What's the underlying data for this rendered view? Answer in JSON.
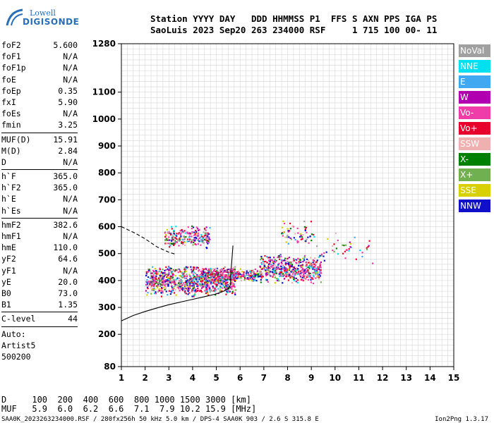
{
  "logo": {
    "line1": "Lowell",
    "line2": "DIGISONDE"
  },
  "header": {
    "line1": "Station YYYY DAY   DDD HHMMSS P1  FFS S AXN PPS IGA PS",
    "line2": "SaoLuis 2023 Sep20 263 234000 RSF     1 715 100 00- 11"
  },
  "params": [
    {
      "k": "foF2",
      "v": "5.600"
    },
    {
      "k": "foF1",
      "v": "N/A"
    },
    {
      "k": "foF1p",
      "v": "N/A"
    },
    {
      "k": "foE",
      "v": "N/A"
    },
    {
      "k": "foEp",
      "v": "0.35"
    },
    {
      "k": "fxI",
      "v": "5.90"
    },
    {
      "k": "foEs",
      "v": "N/A"
    },
    {
      "k": "fmin",
      "v": "3.25"
    },
    {
      "divider": true
    },
    {
      "k": "MUF(D)",
      "v": "15.91"
    },
    {
      "k": "M(D)",
      "v": "2.84"
    },
    {
      "k": "D",
      "v": "N/A"
    },
    {
      "divider": true
    },
    {
      "k": "h`F",
      "v": "365.0"
    },
    {
      "k": "h`F2",
      "v": "365.0"
    },
    {
      "k": "h`E",
      "v": "N/A"
    },
    {
      "k": "h`Es",
      "v": "N/A"
    },
    {
      "divider": true
    },
    {
      "k": "hmF2",
      "v": "382.6"
    },
    {
      "k": "hmF1",
      "v": "N/A"
    },
    {
      "k": "hmE",
      "v": "110.0"
    },
    {
      "k": "yF2",
      "v": "64.6"
    },
    {
      "k": "yF1",
      "v": "N/A"
    },
    {
      "k": "yE",
      "v": "20.0"
    },
    {
      "k": "B0",
      "v": "73.0"
    },
    {
      "k": "B1",
      "v": "1.35"
    },
    {
      "divider": true
    },
    {
      "k": "C-level",
      "v": "44"
    },
    {
      "divider": true
    }
  ],
  "auto": {
    "l1": "Auto:",
    "l2": "Artist5",
    "l3": "500200"
  },
  "legend": [
    {
      "label": "NoVal",
      "color": "#a0a0a0"
    },
    {
      "label": "NNE",
      "color": "#00e0f0"
    },
    {
      "label": "E",
      "color": "#40a8f0"
    },
    {
      "label": "W",
      "color": "#b000b0"
    },
    {
      "label": "Vo-",
      "color": "#f03ca8"
    },
    {
      "label": "Vo+",
      "color": "#e8002c"
    },
    {
      "label": "SSW",
      "color": "#f0b0b0"
    },
    {
      "label": "X-",
      "color": "#008000"
    },
    {
      "label": "X+",
      "color": "#70b050"
    },
    {
      "label": "SSE",
      "color": "#d8d000"
    },
    {
      "label": "NNW",
      "color": "#1010c8"
    }
  ],
  "bottom": {
    "line1": "D     100  200  400  600  800 1000 1500 3000 [km]",
    "line2": "MUF   5.9  6.0  6.2  6.6  7.1  7.9 10.2 15.9 [MHz]"
  },
  "footer": {
    "left": "SAA0K_2023263234000.RSF / 280fx256h 50 kHz 5.0 km / DPS-4 SAA0K 903 / 2.6 S 315.8 E",
    "right": "Ion2Png 1.3.17"
  },
  "chart_data": {
    "type": "scatter",
    "xlim": [
      1,
      15
    ],
    "ylim": [
      80,
      1280
    ],
    "xticks": [
      1,
      2,
      3,
      4,
      5,
      6,
      7,
      8,
      9,
      10,
      11,
      12,
      13,
      14,
      15
    ],
    "yticks": [
      80,
      200,
      300,
      400,
      500,
      600,
      700,
      800,
      900,
      1000,
      1100,
      1280
    ],
    "clusters": [
      {
        "x": [
          2.0,
          5.8
        ],
        "y": [
          340,
          460
        ],
        "count": 900
      },
      {
        "x": [
          2.8,
          4.7
        ],
        "y": [
          520,
          610
        ],
        "count": 220
      },
      {
        "x": [
          4.3,
          6.9
        ],
        "y": [
          395,
          450
        ],
        "count": 320
      },
      {
        "x": [
          6.8,
          9.4
        ],
        "y": [
          390,
          500
        ],
        "count": 500
      },
      {
        "x": [
          7.7,
          9.1
        ],
        "y": [
          530,
          630
        ],
        "count": 60
      },
      {
        "x": [
          9.2,
          11.6
        ],
        "y": [
          440,
          590
        ],
        "count": 40
      }
    ],
    "profile_curve": [
      [
        1.0,
        250
      ],
      [
        1.5,
        270
      ],
      [
        2.0,
        285
      ],
      [
        2.5,
        298
      ],
      [
        3.0,
        310
      ],
      [
        3.5,
        320
      ],
      [
        4.0,
        330
      ],
      [
        4.5,
        340
      ],
      [
        5.0,
        350
      ],
      [
        5.3,
        360
      ],
      [
        5.5,
        370
      ],
      [
        5.6,
        385
      ],
      [
        5.6,
        420
      ],
      [
        5.65,
        470
      ],
      [
        5.7,
        530
      ]
    ],
    "trace_curve": [
      [
        1.0,
        600
      ],
      [
        1.6,
        575
      ],
      [
        2.0,
        555
      ],
      [
        2.5,
        525
      ],
      [
        3.0,
        505
      ],
      [
        3.3,
        497
      ]
    ]
  }
}
